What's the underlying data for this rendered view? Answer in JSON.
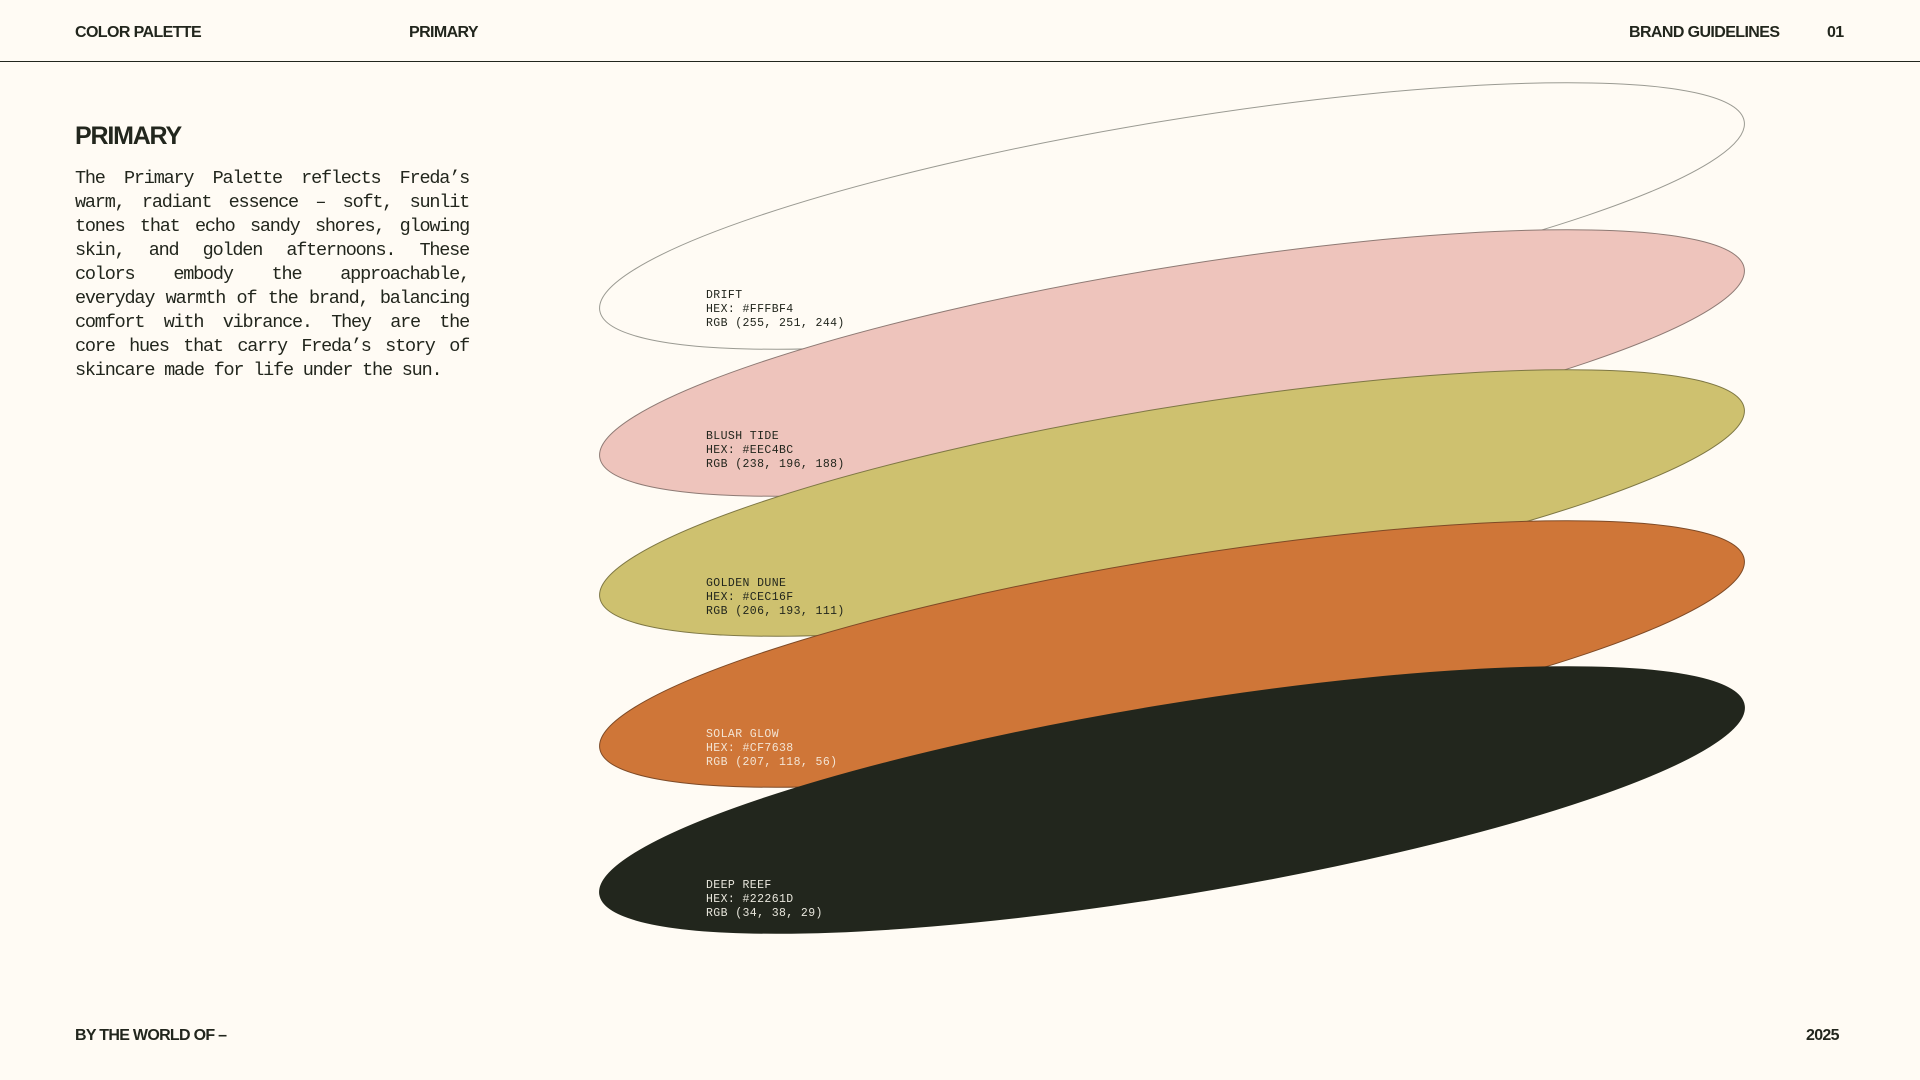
{
  "header": {
    "left": "COLOR PALETTE",
    "section": "PRIMARY",
    "right": "BRAND GUIDELINES",
    "page_number": "01"
  },
  "intro": {
    "title": "PRIMARY",
    "body": "The Primary Palette reflects Freda’s warm, radiant essence – soft, sunlit tones that echo sandy shores, glowing skin, and golden afternoons. These colors embody the approachable, everyday warmth of the brand, balancing comfort with vibrance. They are the core hues that carry Freda’s story of skincare made for life under the sun."
  },
  "palette": [
    {
      "name": "DRIFT",
      "hex_label": "HEX: #FFFBF4",
      "rgb_label": "RGB (255, 251, 244)",
      "fill": "#FFFBF4",
      "stroke": "#9A9A92",
      "label_color": "#22261D"
    },
    {
      "name": "BLUSH TIDE",
      "hex_label": "HEX: #EEC4BC",
      "rgb_label": "RGB (238, 196, 188)",
      "fill": "#EEC4BC",
      "stroke": "#8E7A74",
      "label_color": "#22261D"
    },
    {
      "name": "GOLDEN DUNE",
      "hex_label": "HEX: #CEC16F",
      "rgb_label": "RGB (206, 193, 111)",
      "fill": "#CEC16F",
      "stroke": "#7E7744",
      "label_color": "#22261D"
    },
    {
      "name": "SOLAR GLOW",
      "hex_label": "HEX: #CF7638",
      "rgb_label": "RGB (207, 118, 56)",
      "fill": "#CF7638",
      "stroke": "#7E4A26",
      "label_color": "#F3E4D4"
    },
    {
      "name": "DEEP REEF",
      "hex_label": "HEX: #22261D",
      "rgb_label": "RGB (34, 38, 29)",
      "fill": "#22261D",
      "stroke": "#22261D",
      "label_color": "#E8E6DC"
    }
  ],
  "footer": {
    "left": "BY THE WORLD OF –",
    "right": "2025"
  }
}
